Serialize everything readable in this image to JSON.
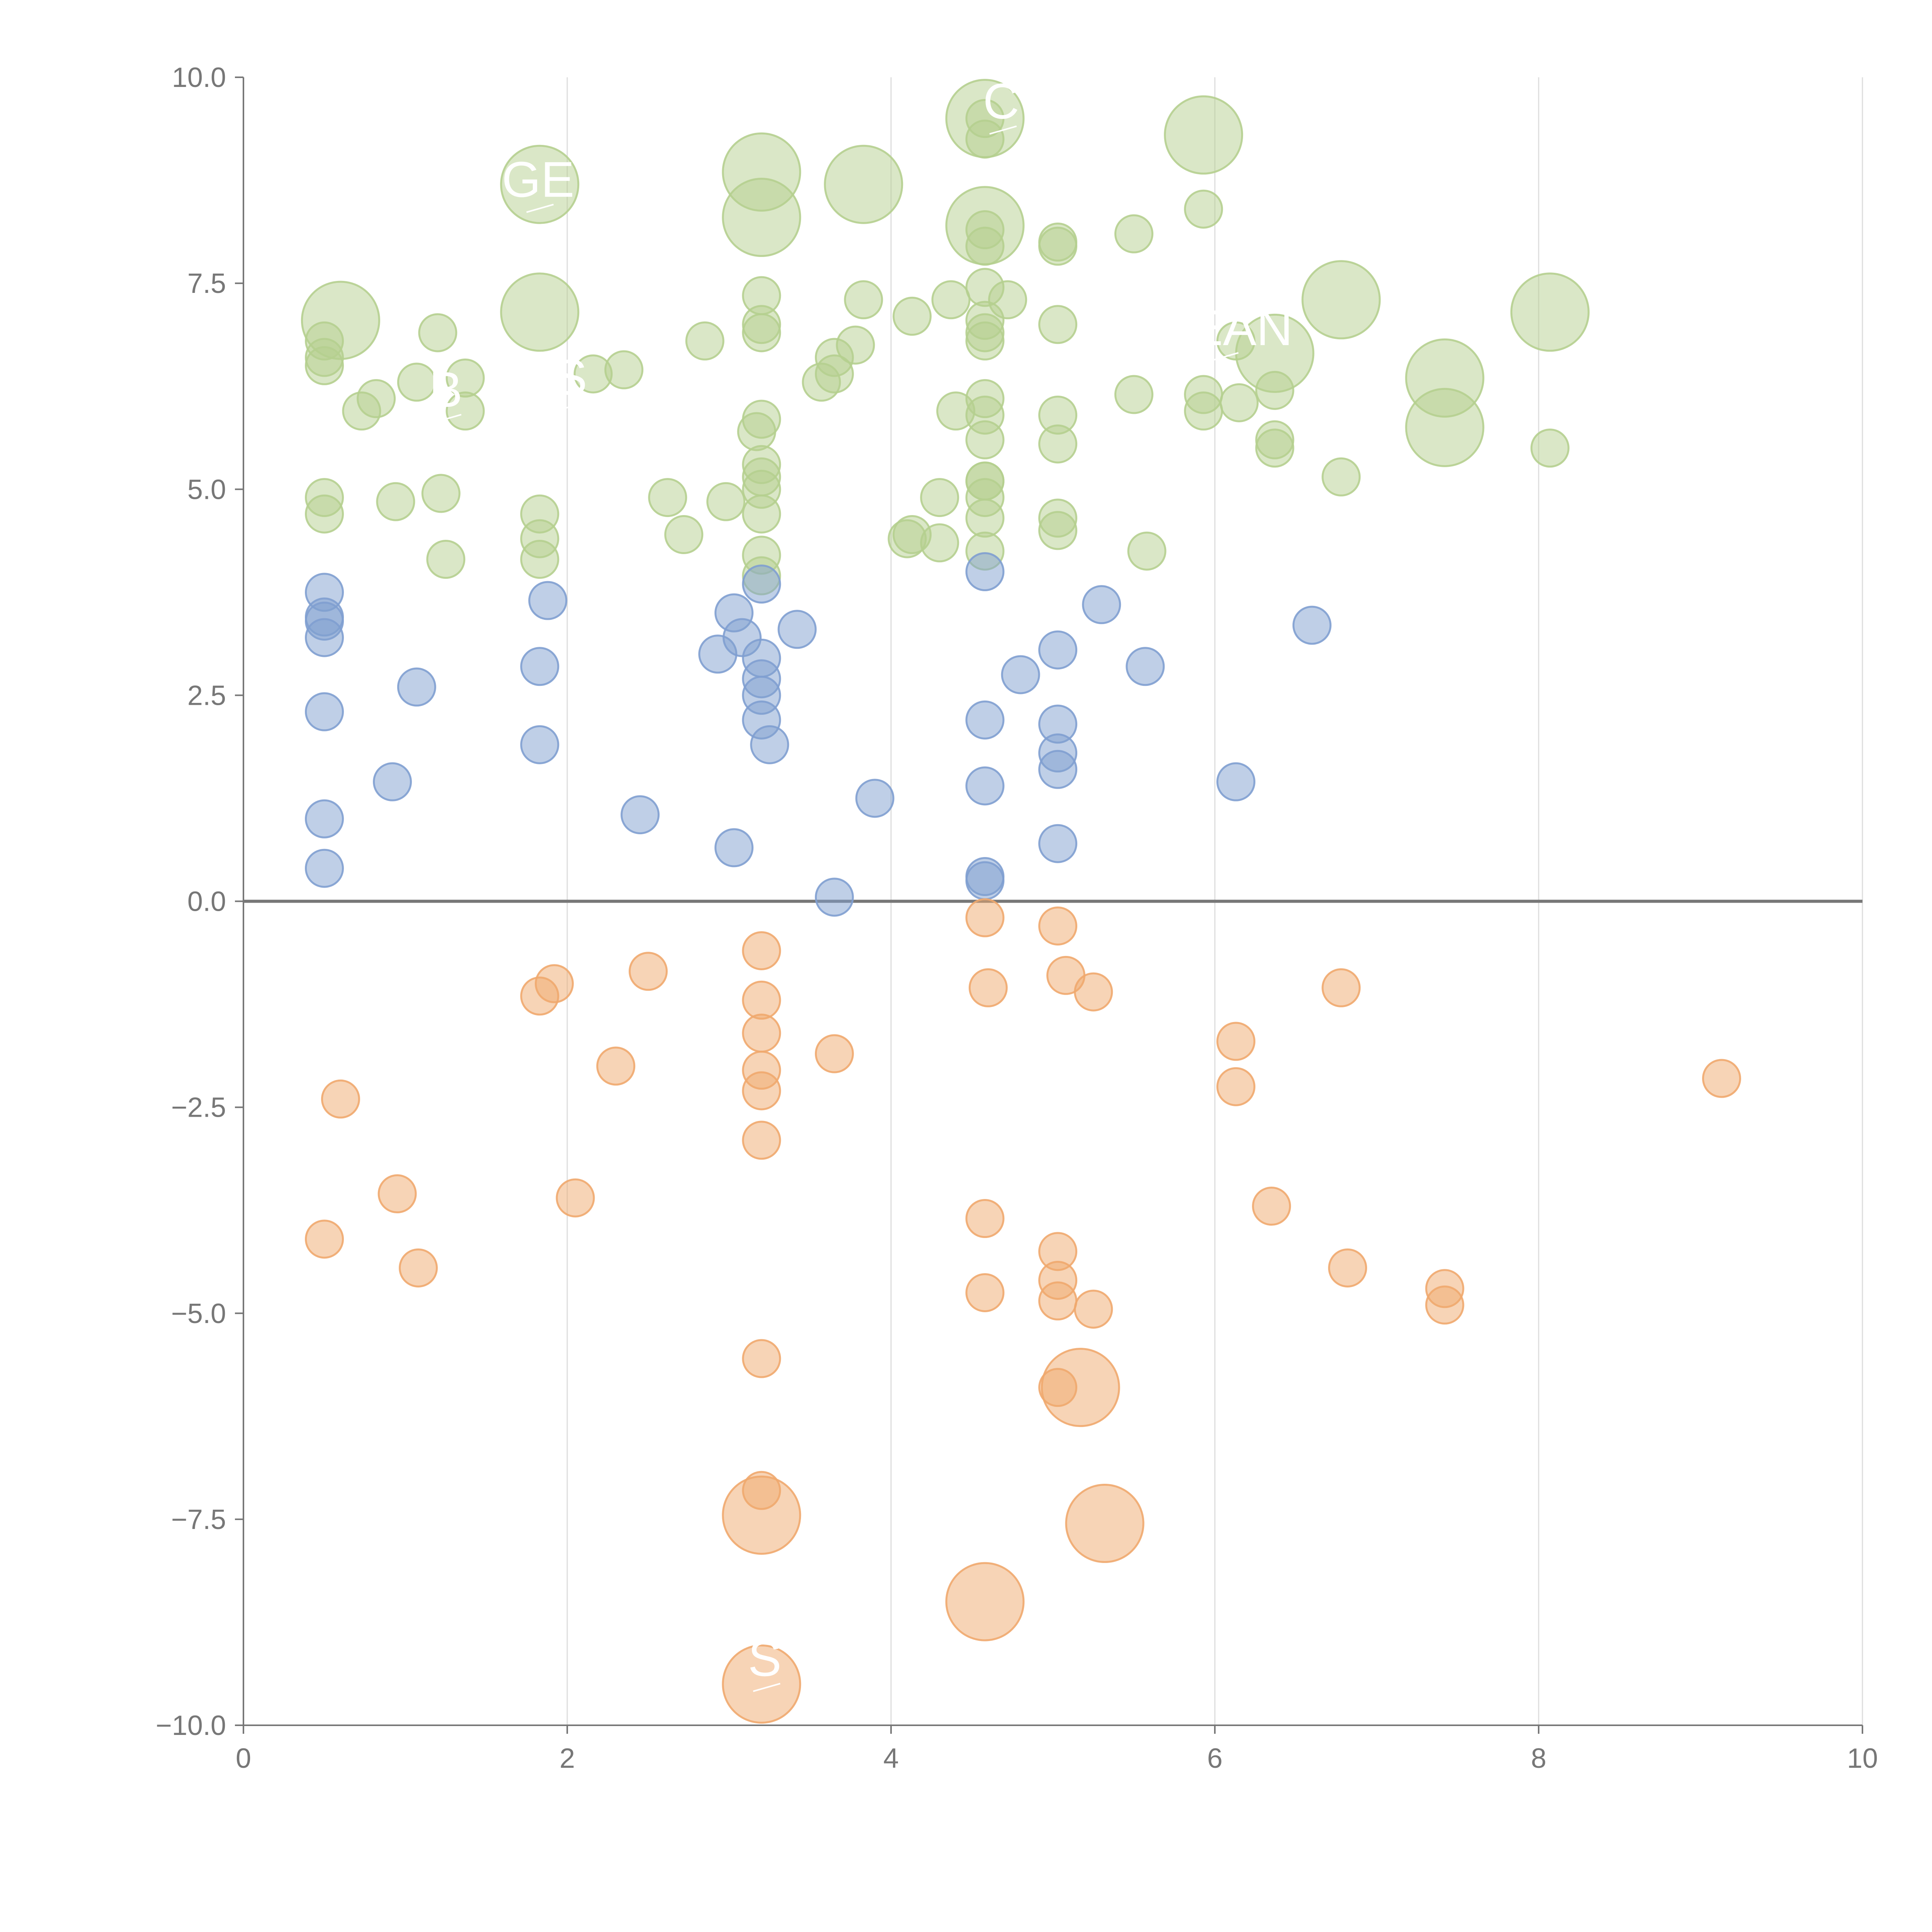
{
  "chart_data": {
    "type": "scatter",
    "title": "",
    "xlabel": "",
    "ylabel": "",
    "xlim": [
      0,
      10
    ],
    "ylim": [
      -10,
      10
    ],
    "grid": "vertical",
    "x_ticks": [
      "0",
      "2",
      "4",
      "6",
      "8",
      "10"
    ],
    "x_tick_values": [
      0,
      2,
      4,
      6,
      8,
      10
    ],
    "y_ticks": [
      "10.0",
      "7.5",
      "5.0",
      "2.5",
      "0.0",
      "−2.5",
      "−5.0",
      "−7.5",
      "−10.0"
    ],
    "y_tick_values": [
      10,
      7.5,
      5,
      2.5,
      0,
      -2.5,
      -5,
      -7.5,
      -10
    ],
    "zero_line": 0,
    "colors": {
      "green": "#b5cf8f",
      "blue": "#7f9fd0",
      "orange": "#efa96e"
    },
    "series": [
      {
        "name": "green",
        "color": "#b5cf8f",
        "points": [
          [
            0.5,
            6.8,
            1
          ],
          [
            0.5,
            6.6,
            1
          ],
          [
            0.5,
            6.5,
            1
          ],
          [
            0.6,
            7.05,
            3
          ],
          [
            0.5,
            4.9,
            1
          ],
          [
            0.5,
            4.7,
            1
          ],
          [
            0.73,
            5.95,
            1
          ],
          [
            0.82,
            6.1,
            1
          ],
          [
            0.94,
            4.85,
            1
          ],
          [
            1.07,
            6.3,
            1
          ],
          [
            1.2,
            6.9,
            1
          ],
          [
            1.22,
            4.95,
            1
          ],
          [
            1.25,
            4.15,
            1
          ],
          [
            1.37,
            5.95,
            1
          ],
          [
            1.37,
            6.35,
            1
          ],
          [
            1.83,
            8.7,
            3
          ],
          [
            1.83,
            7.15,
            3
          ],
          [
            1.83,
            4.7,
            1
          ],
          [
            1.83,
            4.4,
            1
          ],
          [
            1.83,
            4.15,
            1
          ],
          [
            2.16,
            6.4,
            1
          ],
          [
            2.35,
            6.45,
            1
          ],
          [
            2.62,
            4.9,
            1
          ],
          [
            2.72,
            4.45,
            1
          ],
          [
            2.85,
            6.8,
            1
          ],
          [
            2.98,
            4.85,
            1
          ],
          [
            3.2,
            8.85,
            3
          ],
          [
            3.2,
            8.3,
            3
          ],
          [
            3.2,
            7.35,
            1
          ],
          [
            3.2,
            7.0,
            1
          ],
          [
            3.2,
            6.9,
            1
          ],
          [
            3.2,
            5.85,
            1
          ],
          [
            3.17,
            5.7,
            1
          ],
          [
            3.2,
            5.3,
            1
          ],
          [
            3.2,
            5.15,
            1
          ],
          [
            3.2,
            5.0,
            1
          ],
          [
            3.2,
            4.7,
            1
          ],
          [
            3.2,
            4.2,
            1
          ],
          [
            3.2,
            3.95,
            1
          ],
          [
            3.57,
            6.3,
            1
          ],
          [
            3.65,
            6.6,
            1
          ],
          [
            3.65,
            6.4,
            1
          ],
          [
            3.78,
            6.75,
            1
          ],
          [
            3.83,
            7.3,
            1
          ],
          [
            3.83,
            8.7,
            3
          ],
          [
            4.1,
            4.4,
            1
          ],
          [
            4.13,
            4.45,
            1
          ],
          [
            4.13,
            7.1,
            1
          ],
          [
            4.3,
            4.35,
            1
          ],
          [
            4.3,
            4.9,
            1
          ],
          [
            4.37,
            7.3,
            1
          ],
          [
            4.4,
            5.95,
            1
          ],
          [
            4.58,
            9.5,
            3
          ],
          [
            4.58,
            9.5,
            1
          ],
          [
            4.58,
            9.25,
            1
          ],
          [
            4.58,
            8.2,
            3
          ],
          [
            4.58,
            8.15,
            1
          ],
          [
            4.58,
            7.95,
            1
          ],
          [
            4.58,
            7.45,
            1
          ],
          [
            4.58,
            7.05,
            1
          ],
          [
            4.58,
            6.9,
            1
          ],
          [
            4.58,
            6.8,
            1
          ],
          [
            4.72,
            7.3,
            1
          ],
          [
            4.58,
            6.1,
            1
          ],
          [
            4.58,
            5.9,
            1
          ],
          [
            4.58,
            5.6,
            1
          ],
          [
            4.58,
            5.1,
            1
          ],
          [
            4.58,
            5.1,
            1
          ],
          [
            4.58,
            4.9,
            1
          ],
          [
            4.58,
            4.65,
            1
          ],
          [
            4.58,
            4.25,
            1
          ],
          [
            5.03,
            8.0,
            1
          ],
          [
            5.03,
            7.95,
            1
          ],
          [
            5.03,
            7.0,
            1
          ],
          [
            5.03,
            5.9,
            1
          ],
          [
            5.03,
            5.55,
            1
          ],
          [
            5.03,
            4.65,
            1
          ],
          [
            5.03,
            4.5,
            1
          ],
          [
            5.5,
            8.1,
            1
          ],
          [
            5.5,
            6.15,
            1
          ],
          [
            5.58,
            4.25,
            1
          ],
          [
            5.93,
            9.3,
            3
          ],
          [
            5.93,
            8.4,
            1
          ],
          [
            5.93,
            6.15,
            1
          ],
          [
            5.93,
            5.95,
            1
          ],
          [
            6.13,
            6.8,
            1
          ],
          [
            6.15,
            6.05,
            1
          ],
          [
            6.37,
            6.65,
            3
          ],
          [
            6.37,
            6.2,
            1
          ],
          [
            6.37,
            5.6,
            1
          ],
          [
            6.37,
            5.5,
            1
          ],
          [
            6.78,
            7.3,
            3
          ],
          [
            6.78,
            5.15,
            1
          ],
          [
            7.42,
            6.35,
            3
          ],
          [
            7.42,
            5.75,
            3
          ],
          [
            8.07,
            7.15,
            3
          ],
          [
            8.07,
            5.5,
            1
          ]
        ]
      },
      {
        "name": "blue",
        "color": "#7f9fd0",
        "points": [
          [
            0.5,
            3.75,
            1
          ],
          [
            0.5,
            3.45,
            1
          ],
          [
            0.5,
            3.4,
            1
          ],
          [
            0.5,
            3.2,
            1
          ],
          [
            0.5,
            2.3,
            1
          ],
          [
            0.5,
            1.0,
            1
          ],
          [
            0.5,
            0.4,
            1
          ],
          [
            0.92,
            1.45,
            1
          ],
          [
            1.07,
            2.6,
            1
          ],
          [
            1.83,
            2.85,
            1
          ],
          [
            1.83,
            1.9,
            1
          ],
          [
            1.88,
            3.65,
            1
          ],
          [
            2.45,
            1.05,
            1
          ],
          [
            2.93,
            3.0,
            1
          ],
          [
            3.03,
            3.5,
            1
          ],
          [
            3.03,
            0.65,
            1
          ],
          [
            3.08,
            3.2,
            1
          ],
          [
            3.2,
            3.85,
            1
          ],
          [
            3.2,
            2.95,
            1
          ],
          [
            3.2,
            2.7,
            1
          ],
          [
            3.2,
            2.5,
            1
          ],
          [
            3.2,
            2.2,
            1
          ],
          [
            3.25,
            1.9,
            1
          ],
          [
            3.42,
            3.3,
            1
          ],
          [
            3.65,
            0.05,
            1
          ],
          [
            3.9,
            1.25,
            1
          ],
          [
            4.58,
            4.0,
            1
          ],
          [
            4.58,
            2.2,
            1
          ],
          [
            4.58,
            1.4,
            1
          ],
          [
            4.58,
            0.3,
            1
          ],
          [
            4.58,
            0.25,
            1
          ],
          [
            4.8,
            2.75,
            1
          ],
          [
            5.03,
            3.05,
            1
          ],
          [
            5.03,
            2.15,
            1
          ],
          [
            5.03,
            1.8,
            1
          ],
          [
            5.03,
            1.6,
            1
          ],
          [
            5.03,
            0.7,
            1
          ],
          [
            5.3,
            3.6,
            1
          ],
          [
            5.57,
            2.85,
            1
          ],
          [
            6.13,
            1.45,
            1
          ],
          [
            6.6,
            3.35,
            1
          ]
        ]
      },
      {
        "name": "orange",
        "color": "#efa96e",
        "points": [
          [
            0.6,
            -2.4,
            1
          ],
          [
            0.5,
            -4.1,
            1
          ],
          [
            0.95,
            -3.55,
            1
          ],
          [
            1.08,
            -4.45,
            1
          ],
          [
            1.83,
            -1.15,
            1
          ],
          [
            1.92,
            -1.0,
            1
          ],
          [
            2.05,
            -3.6,
            1
          ],
          [
            2.3,
            -2.0,
            1
          ],
          [
            2.5,
            -0.85,
            1
          ],
          [
            3.2,
            -0.6,
            1
          ],
          [
            3.2,
            -1.2,
            1
          ],
          [
            3.2,
            -1.6,
            1
          ],
          [
            3.2,
            -2.05,
            1
          ],
          [
            3.2,
            -2.3,
            1
          ],
          [
            3.2,
            -2.9,
            1
          ],
          [
            3.2,
            -5.55,
            1
          ],
          [
            3.2,
            -7.15,
            1
          ],
          [
            3.2,
            -7.45,
            3
          ],
          [
            3.2,
            -9.5,
            3
          ],
          [
            3.65,
            -1.85,
            1
          ],
          [
            4.58,
            -0.2,
            1
          ],
          [
            4.6,
            -1.05,
            1
          ],
          [
            4.58,
            -3.85,
            1
          ],
          [
            4.58,
            -4.75,
            1
          ],
          [
            4.58,
            -8.5,
            3
          ],
          [
            5.03,
            -0.3,
            1
          ],
          [
            5.08,
            -0.9,
            1
          ],
          [
            5.25,
            -1.1,
            1
          ],
          [
            5.03,
            -4.25,
            1
          ],
          [
            5.03,
            -4.6,
            1
          ],
          [
            5.03,
            -4.85,
            1
          ],
          [
            5.25,
            -4.95,
            1
          ],
          [
            5.03,
            -5.9,
            1
          ],
          [
            5.17,
            -5.9,
            3
          ],
          [
            5.32,
            -7.55,
            3
          ],
          [
            6.13,
            -1.7,
            1
          ],
          [
            6.13,
            -2.25,
            1
          ],
          [
            6.35,
            -3.7,
            1
          ],
          [
            6.78,
            -1.05,
            1
          ],
          [
            6.82,
            -4.45,
            1
          ],
          [
            7.42,
            -4.7,
            1
          ],
          [
            7.42,
            -4.9,
            1
          ],
          [
            9.13,
            -2.15,
            1
          ]
        ]
      }
    ],
    "annotations": [
      {
        "text": "GE",
        "x": 1.82,
        "y": 8.55
      },
      {
        "text": "B",
        "x": 1.25,
        "y": 6.0
      },
      {
        "text": "S",
        "x": 2.02,
        "y": 6.15
      },
      {
        "text": "CEAN",
        "x": 6.05,
        "y": 6.75
      },
      {
        "text": "C",
        "x": 4.68,
        "y": 9.5
      },
      {
        "text": "S",
        "x": 3.22,
        "y": -9.4
      }
    ]
  }
}
